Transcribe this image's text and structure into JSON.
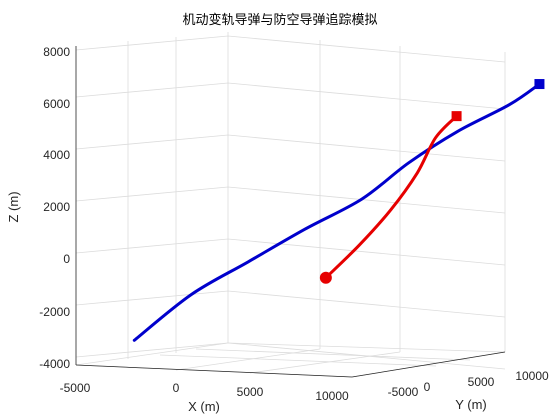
{
  "chart_data": {
    "type": "line3d",
    "title": "机动变轨导弹与防空导弹追踪模拟",
    "xlabel": "X (m)",
    "ylabel": "Y (m)",
    "zlabel": "Z (m)",
    "x_ticks": [
      "-5000",
      "0",
      "5000",
      "10000"
    ],
    "y_ticks": [
      "-5000",
      "0",
      "5000",
      "10000"
    ],
    "z_ticks": [
      "-4000",
      "-2000",
      "0",
      "2000",
      "4000",
      "6000",
      "8000"
    ],
    "zlim": [
      -4000,
      8000
    ],
    "grid": true,
    "colors": {
      "blue": "#0000cc",
      "red": "#e60000"
    },
    "series": [
      {
        "color": "blue",
        "start_marker": "none",
        "end_marker": "square",
        "points": [
          {
            "x": -6000,
            "y": -5000,
            "z": -2900
          },
          {
            "x": -3500,
            "y": -3800,
            "z": -1000
          },
          {
            "x": -1000,
            "y": -2600,
            "z": 400
          },
          {
            "x": 1500,
            "y": -1400,
            "z": 1800
          },
          {
            "x": 4000,
            "y": -200,
            "z": 3100
          },
          {
            "x": 6000,
            "y": 900,
            "z": 4600
          },
          {
            "x": 8000,
            "y": 2200,
            "z": 5900
          },
          {
            "x": 10000,
            "y": 3800,
            "z": 7000
          },
          {
            "x": 11000,
            "y": 5000,
            "z": 7800
          }
        ]
      },
      {
        "color": "red",
        "start_marker": "circle",
        "end_marker": "square",
        "points": [
          {
            "x": 3000,
            "y": -2000,
            "z": 100
          },
          {
            "x": 4300,
            "y": -1000,
            "z": 1400
          },
          {
            "x": 5500,
            "y": 0,
            "z": 2800
          },
          {
            "x": 6700,
            "y": 500,
            "z": 4300
          },
          {
            "x": 7500,
            "y": 900,
            "z": 5700
          },
          {
            "x": 8500,
            "y": 1200,
            "z": 6600
          }
        ]
      }
    ]
  }
}
